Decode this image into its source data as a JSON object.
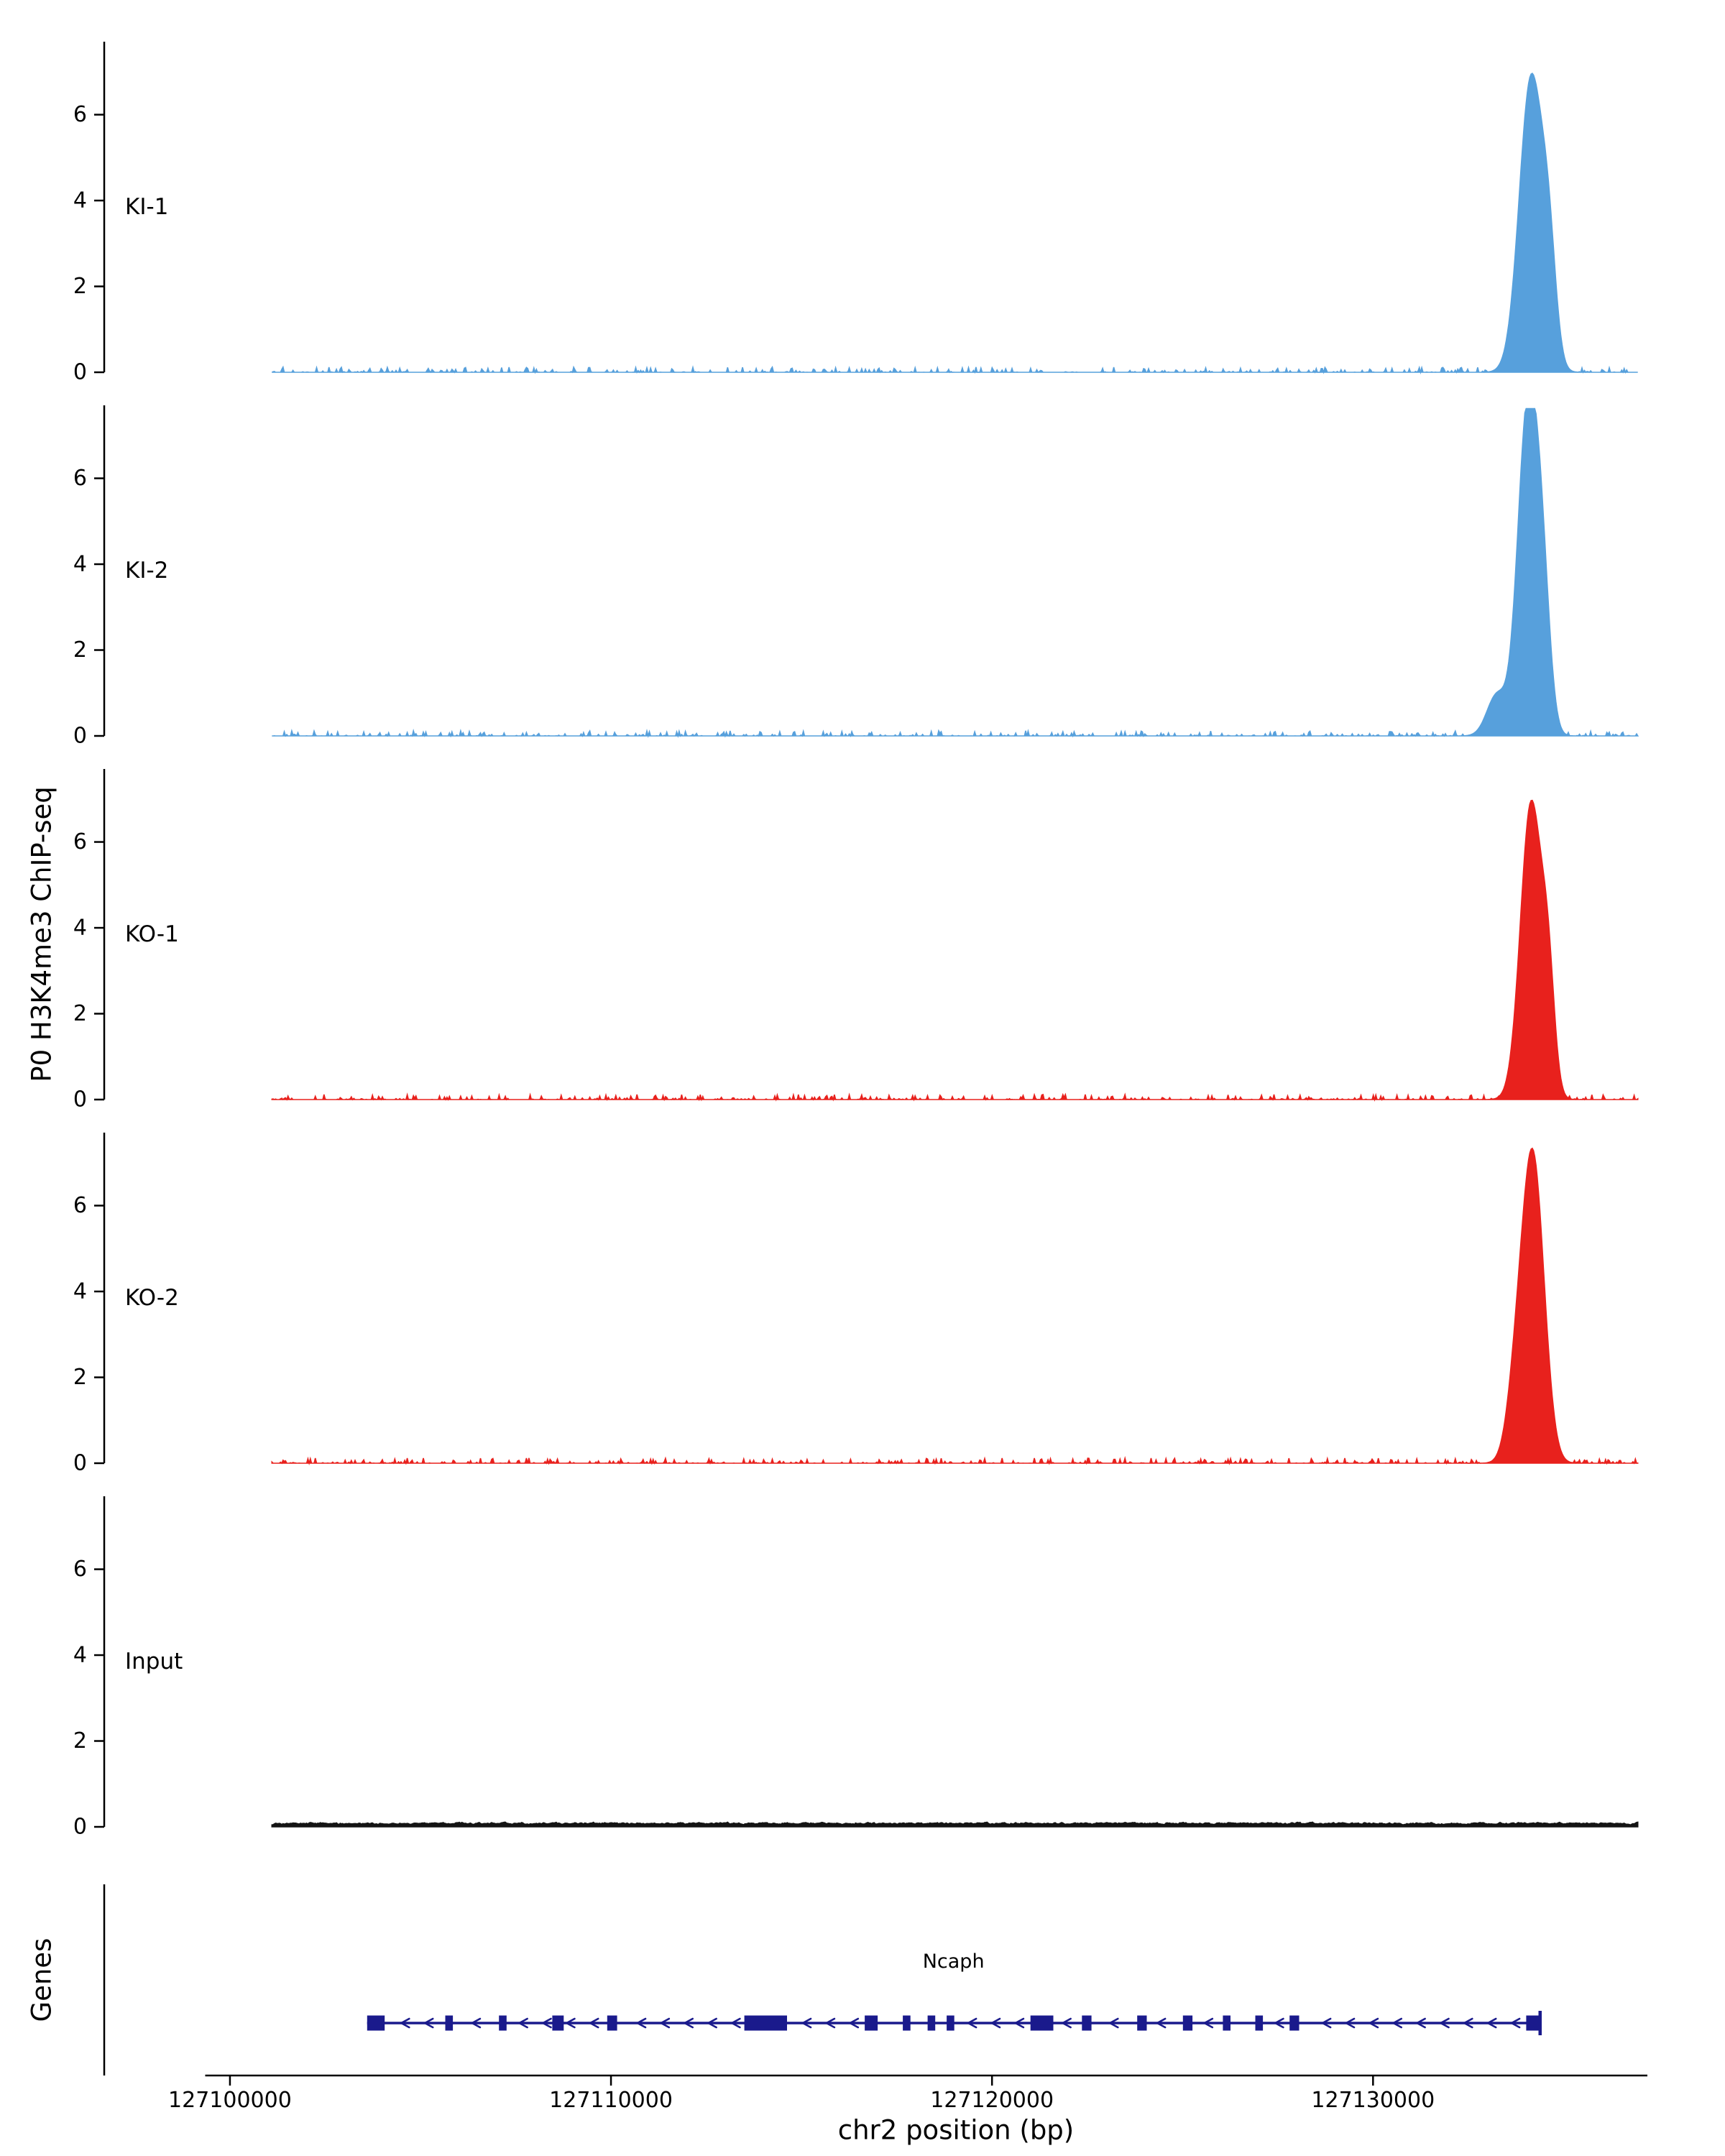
{
  "chart_data": {
    "type": "area",
    "description": "Genome-browser style ChIP-seq coverage tracks (KI and KO replicates plus Input) over the Ncaph locus on mouse chr2",
    "ylabel": "P0 H3K4me3 ChIP-seq",
    "xlabel": "chr2 position (bp)",
    "genes_label": "Genes",
    "x_domain": [
      127096700,
      127137200
    ],
    "x_axis_line_start": 127099350,
    "x_ticks": [
      127100000,
      127110000,
      127120000,
      127130000
    ],
    "x_tick_labels": [
      "127100000",
      "127110000",
      "127120000",
      "127130000"
    ],
    "y_ticks": [
      0,
      2,
      4,
      6
    ],
    "y_max": 7.7,
    "data_range": [
      127101100,
      127136950
    ],
    "tracks": [
      {
        "name": "KI-1",
        "color": "#57A0DC",
        "seed": 11,
        "noise": "sparse",
        "noise_amp": 0.055,
        "peaks": [
          {
            "center": 127134150,
            "height": 6.85,
            "sigma": 310
          },
          {
            "center": 127134620,
            "height": 2.1,
            "sigma": 190
          }
        ]
      },
      {
        "name": "KI-2",
        "color": "#57A0DC",
        "seed": 22,
        "noise": "sparse",
        "noise_amp": 0.055,
        "peaks": [
          {
            "center": 127134050,
            "height": 7.4,
            "sigma": 260
          },
          {
            "center": 127134430,
            "height": 3.2,
            "sigma": 210
          },
          {
            "center": 127133250,
            "height": 0.95,
            "sigma": 260
          }
        ]
      },
      {
        "name": "KO-1",
        "color": "#E8211D",
        "seed": 33,
        "noise": "sparse",
        "noise_amp": 0.055,
        "peaks": [
          {
            "center": 127134150,
            "height": 6.9,
            "sigma": 280
          },
          {
            "center": 127134600,
            "height": 2.3,
            "sigma": 170
          }
        ]
      },
      {
        "name": "KO-2",
        "color": "#E8211D",
        "seed": 44,
        "noise": "sparse",
        "noise_amp": 0.055,
        "peaks": [
          {
            "center": 127134200,
            "height": 7.05,
            "sigma": 290
          },
          {
            "center": 127133750,
            "height": 1.5,
            "sigma": 240
          }
        ]
      },
      {
        "name": "Input",
        "color": "#141414",
        "seed": 55,
        "noise": "continuous",
        "noise_base": 0.035,
        "noise_amp": 0.09,
        "peaks": []
      }
    ],
    "gene": {
      "name": "Ncaph",
      "chrom": "chr2",
      "strand": "-",
      "color": "#1A1A8C",
      "start": 127103600,
      "end": 127134380,
      "arrow_spacing": 620,
      "exons": [
        [
          127103600,
          127104060
        ],
        [
          127105650,
          127105850
        ],
        [
          127107060,
          127107260
        ],
        [
          127108460,
          127108760
        ],
        [
          127109900,
          127110160
        ],
        [
          127113500,
          127114620
        ],
        [
          127116660,
          127117000
        ],
        [
          127117660,
          127117860
        ],
        [
          127118310,
          127118510
        ],
        [
          127118810,
          127119010
        ],
        [
          127121010,
          127121610
        ],
        [
          127122360,
          127122610
        ],
        [
          127123810,
          127124060
        ],
        [
          127125010,
          127125260
        ],
        [
          127126060,
          127126260
        ],
        [
          127126910,
          127127110
        ],
        [
          127127810,
          127128060
        ],
        [
          127134020,
          127134380
        ]
      ]
    }
  }
}
